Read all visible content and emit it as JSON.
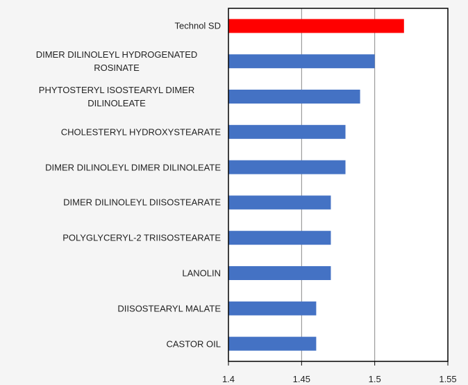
{
  "chart_data": {
    "type": "bar",
    "orientation": "horizontal",
    "categories": [
      "Technol SD",
      "DIMER DILINOLEYL HYDROGENATED ROSINATE",
      "PHYTOSTERYL ISOSTEARYL DIMER DILINOLEATE",
      "CHOLESTERYL HYDROXYSTEARATE",
      "DIMER DILINOLEYL DIMER DILINOLEATE",
      "DIMER DILINOLEYL DIISOSTEARATE",
      "POLYGLYCERYL-2 TRIISOSTEARATE",
      "LANOLIN",
      "DIISOSTEARYL MALATE",
      "CASTOR OIL"
    ],
    "values": [
      1.52,
      1.5,
      1.49,
      1.48,
      1.48,
      1.47,
      1.47,
      1.47,
      1.46,
      1.46
    ],
    "colors": [
      "#ff0000",
      "#4472c4",
      "#4472c4",
      "#4472c4",
      "#4472c4",
      "#4472c4",
      "#4472c4",
      "#4472c4",
      "#4472c4",
      "#4472c4"
    ],
    "xlim": [
      1.4,
      1.55
    ],
    "xticks": [
      1.4,
      1.45,
      1.5,
      1.55
    ],
    "grid": true
  }
}
